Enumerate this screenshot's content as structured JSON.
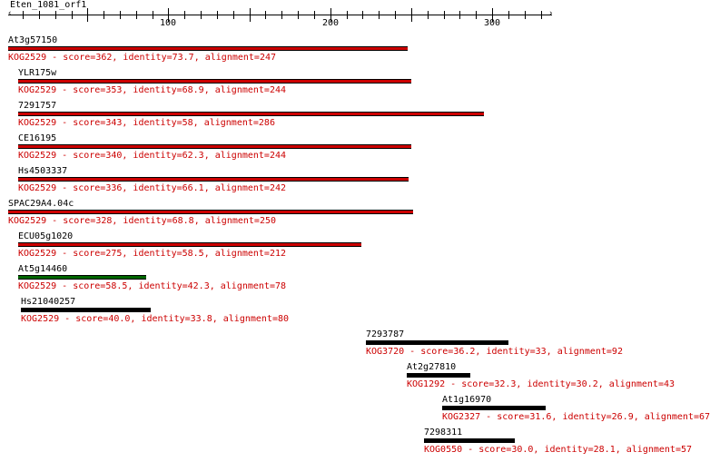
{
  "query_title": "Eten_1081_orf1",
  "axis": {
    "ticks": [
      {
        "value": 100,
        "label": "100"
      },
      {
        "value": 200,
        "label": "200"
      },
      {
        "value": 300,
        "label": "300"
      }
    ],
    "min": 1,
    "max": 337
  },
  "colors": {
    "red": "#cc0000",
    "green": "#006600",
    "black": "#000000",
    "desc": "#cc0000"
  },
  "hits": [
    {
      "name": "At3g57150",
      "start": 1,
      "end": 248,
      "color": "red",
      "desc": "KOG2529 - score=362, identity=73.7, alignment=247"
    },
    {
      "name": "YLR175w",
      "start": 7,
      "end": 250,
      "color": "red",
      "desc": "KOG2529 - score=353, identity=68.9, alignment=244"
    },
    {
      "name": "7291757",
      "start": 7,
      "end": 295,
      "color": "red",
      "desc": "KOG2529 - score=343, identity=58, alignment=286"
    },
    {
      "name": "CE16195",
      "start": 7,
      "end": 250,
      "color": "red",
      "desc": "KOG2529 - score=340, identity=62.3, alignment=244"
    },
    {
      "name": "Hs4503337",
      "start": 7,
      "end": 248,
      "color": "red",
      "desc": "KOG2529 - score=336, identity=66.1, alignment=242"
    },
    {
      "name": "SPAC29A4.04c",
      "start": 1,
      "end": 251,
      "color": "red",
      "desc": "KOG2529 - score=328, identity=68.8, alignment=250"
    },
    {
      "name": "ECU05g1020",
      "start": 7,
      "end": 219,
      "color": "red",
      "desc": "KOG2529 - score=275, identity=58.5, alignment=212"
    },
    {
      "name": "At5g14460",
      "start": 7,
      "end": 86,
      "color": "green",
      "desc": "KOG2529 - score=58.5, identity=42.3, alignment=78"
    },
    {
      "name": "Hs21040257",
      "start": 9,
      "end": 89,
      "color": "black",
      "desc": "KOG2529 - score=40.0, identity=33.8, alignment=80"
    },
    {
      "name": "7293787",
      "start": 222,
      "end": 310,
      "color": "black",
      "desc": "KOG3720 - score=36.2, identity=33, alignment=92"
    },
    {
      "name": "At2g27810",
      "start": 247,
      "end": 286,
      "color": "black",
      "desc": "KOG1292 - score=32.3, identity=30.2, alignment=43"
    },
    {
      "name": "At1g16970",
      "start": 269,
      "end": 333,
      "color": "black",
      "desc": "KOG2327 - score=31.6, identity=26.9, alignment=67"
    },
    {
      "name": "7298311",
      "start": 258,
      "end": 314,
      "color": "black",
      "desc": "KOG0550 - score=30.0, identity=28.1, alignment=57"
    }
  ]
}
